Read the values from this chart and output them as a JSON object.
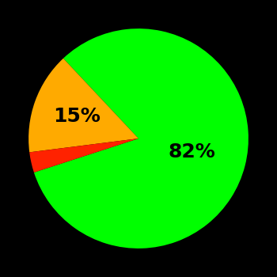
{
  "slices": [
    82,
    15,
    3
  ],
  "colors": [
    "#00ff00",
    "#ffaa00",
    "#ff2200"
  ],
  "background_color": "#000000",
  "label_fontsize": 18,
  "label_fontweight": "bold",
  "figsize": [
    3.5,
    3.5
  ],
  "dpi": 100,
  "startangle": 198
}
